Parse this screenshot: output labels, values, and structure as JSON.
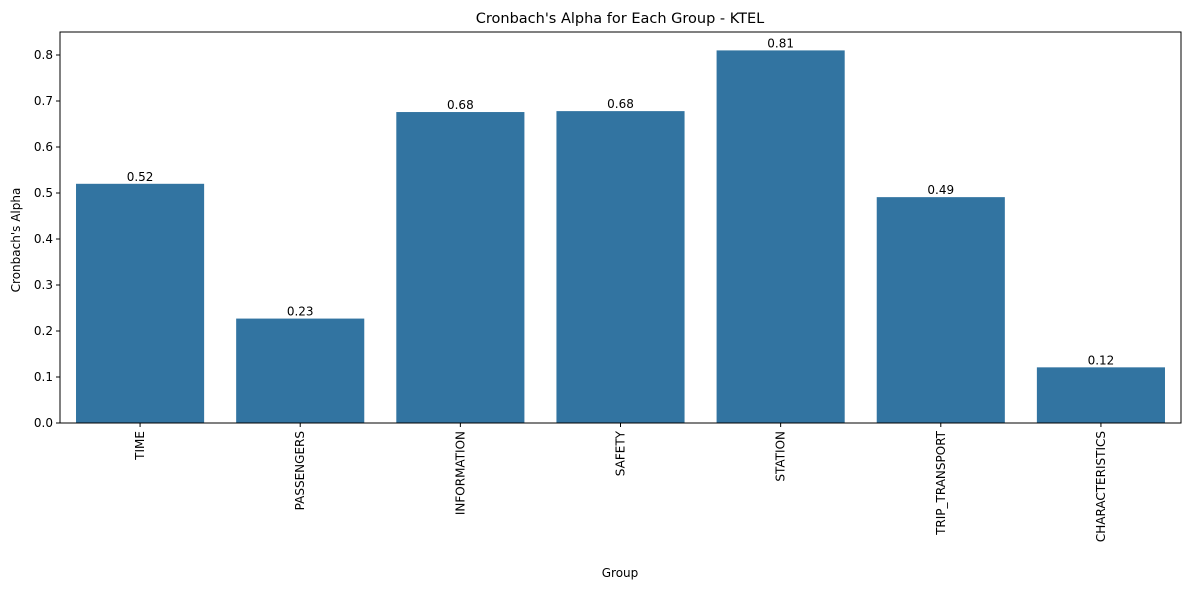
{
  "chart_data": {
    "type": "bar",
    "title": "Cronbach's Alpha for Each Group - KTEL",
    "xlabel": "Group",
    "ylabel": "Cronbach's Alpha",
    "categories": [
      "TIME",
      "PASSENGERS",
      "INFORMATION",
      "SAFETY",
      "STATION",
      "TRIP_TRANSPORT",
      "CHARACTERISTICS"
    ],
    "values": [
      0.52,
      0.227,
      0.676,
      0.678,
      0.81,
      0.491,
      0.121
    ],
    "data_labels": [
      "0.52",
      "0.23",
      "0.68",
      "0.68",
      "0.81",
      "0.49",
      "0.12"
    ],
    "ylim": [
      0,
      0.85
    ],
    "yticks": [
      0.0,
      0.1,
      0.2,
      0.3,
      0.4,
      0.5,
      0.6,
      0.7,
      0.8
    ],
    "ytick_labels": [
      "0.0",
      "0.1",
      "0.2",
      "0.3",
      "0.4",
      "0.5",
      "0.6",
      "0.7",
      "0.8"
    ],
    "bar_color": "#3274a1",
    "grid": false,
    "legend": false
  }
}
